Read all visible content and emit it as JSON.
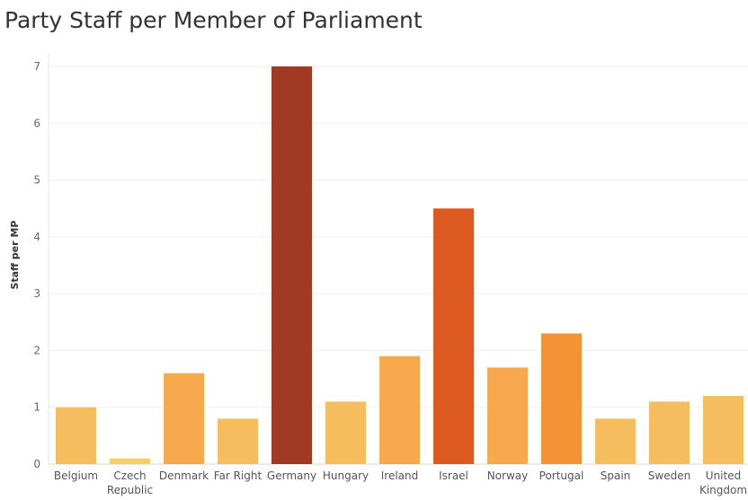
{
  "chart_data": {
    "type": "bar",
    "title": "Party Staff per Member of Parliament",
    "xlabel": "",
    "ylabel": "Staff per MP",
    "categories": [
      "Belgium",
      "Czech Republic",
      "Denmark",
      "Far Right",
      "Germany",
      "Hungary",
      "Ireland",
      "Israel",
      "Norway",
      "Portugal",
      "Spain",
      "Sweden",
      "United Kingdom"
    ],
    "category_label_lines": [
      [
        "Belgium"
      ],
      [
        "Czech",
        "Republic"
      ],
      [
        "Denmark"
      ],
      [
        "Far Right"
      ],
      [
        "Germany"
      ],
      [
        "Hungary"
      ],
      [
        "Ireland"
      ],
      [
        "Israel"
      ],
      [
        "Norway"
      ],
      [
        "Portugal"
      ],
      [
        "Spain"
      ],
      [
        "Sweden"
      ],
      [
        "United",
        "Kingdom"
      ]
    ],
    "values": [
      1.0,
      0.1,
      1.6,
      0.8,
      7.0,
      1.1,
      1.9,
      4.5,
      1.7,
      2.3,
      0.8,
      1.1,
      1.2
    ],
    "colors": [
      "#f6bd5f",
      "#f5d068",
      "#f8a94d",
      "#f6bd5f",
      "#a13a24",
      "#f6bd5f",
      "#f8a94d",
      "#dc5a22",
      "#f8a94d",
      "#f39335",
      "#f6bd5f",
      "#f6bd5f",
      "#f6bd5f"
    ],
    "ylim": [
      0,
      7
    ],
    "yticks": [
      0,
      1,
      2,
      3,
      4,
      5,
      6,
      7
    ],
    "grid": true,
    "legend": "none"
  }
}
